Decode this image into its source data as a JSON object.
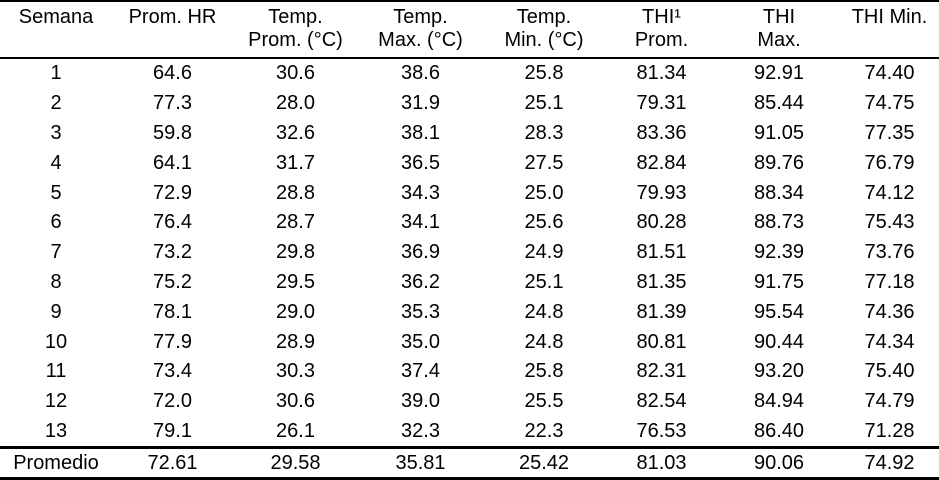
{
  "colors": {
    "background": "#ffffff",
    "text": "#000000",
    "rule": "#000000"
  },
  "table": {
    "columns": [
      {
        "id": "semana",
        "line1": "Semana",
        "line2": ""
      },
      {
        "id": "prom-hr",
        "line1": "Prom. HR",
        "line2": ""
      },
      {
        "id": "temp-prom",
        "line1": "Temp.",
        "line2": "Prom. (°C)"
      },
      {
        "id": "temp-max",
        "line1": "Temp.",
        "line2": "Max. (°C)"
      },
      {
        "id": "temp-min",
        "line1": "Temp.",
        "line2": "Min. (°C)"
      },
      {
        "id": "thi-prom",
        "line1": "THI¹",
        "line2": "Prom."
      },
      {
        "id": "thi-max",
        "line1": "THI",
        "line2": "Max."
      },
      {
        "id": "thi-min",
        "line1": "THI Min.",
        "line2": ""
      }
    ],
    "rows": [
      [
        "1",
        "64.6",
        "30.6",
        "38.6",
        "25.8",
        "81.34",
        "92.91",
        "74.40"
      ],
      [
        "2",
        "77.3",
        "28.0",
        "31.9",
        "25.1",
        "79.31",
        "85.44",
        "74.75"
      ],
      [
        "3",
        "59.8",
        "32.6",
        "38.1",
        "28.3",
        "83.36",
        "91.05",
        "77.35"
      ],
      [
        "4",
        "64.1",
        "31.7",
        "36.5",
        "27.5",
        "82.84",
        "89.76",
        "76.79"
      ],
      [
        "5",
        "72.9",
        "28.8",
        "34.3",
        "25.0",
        "79.93",
        "88.34",
        "74.12"
      ],
      [
        "6",
        "76.4",
        "28.7",
        "34.1",
        "25.6",
        "80.28",
        "88.73",
        "75.43"
      ],
      [
        "7",
        "73.2",
        "29.8",
        "36.9",
        "24.9",
        "81.51",
        "92.39",
        "73.76"
      ],
      [
        "8",
        "75.2",
        "29.5",
        "36.2",
        "25.1",
        "81.35",
        "91.75",
        "77.18"
      ],
      [
        "9",
        "78.1",
        "29.0",
        "35.3",
        "24.8",
        "81.39",
        "95.54",
        "74.36"
      ],
      [
        "10",
        "77.9",
        "28.9",
        "35.0",
        "24.8",
        "80.81",
        "90.44",
        "74.34"
      ],
      [
        "11",
        "73.4",
        "30.3",
        "37.4",
        "25.8",
        "82.31",
        "93.20",
        "75.40"
      ],
      [
        "12",
        "72.0",
        "30.6",
        "39.0",
        "25.5",
        "82.54",
        "84.94",
        "74.79"
      ],
      [
        "13",
        "79.1",
        "26.1",
        "32.3",
        "22.3",
        "76.53",
        "86.40",
        "71.28"
      ]
    ],
    "summary_row": [
      "Promedio",
      "72.61",
      "29.58",
      "35.81",
      "25.42",
      "81.03",
      "90.06",
      "74.92"
    ]
  }
}
